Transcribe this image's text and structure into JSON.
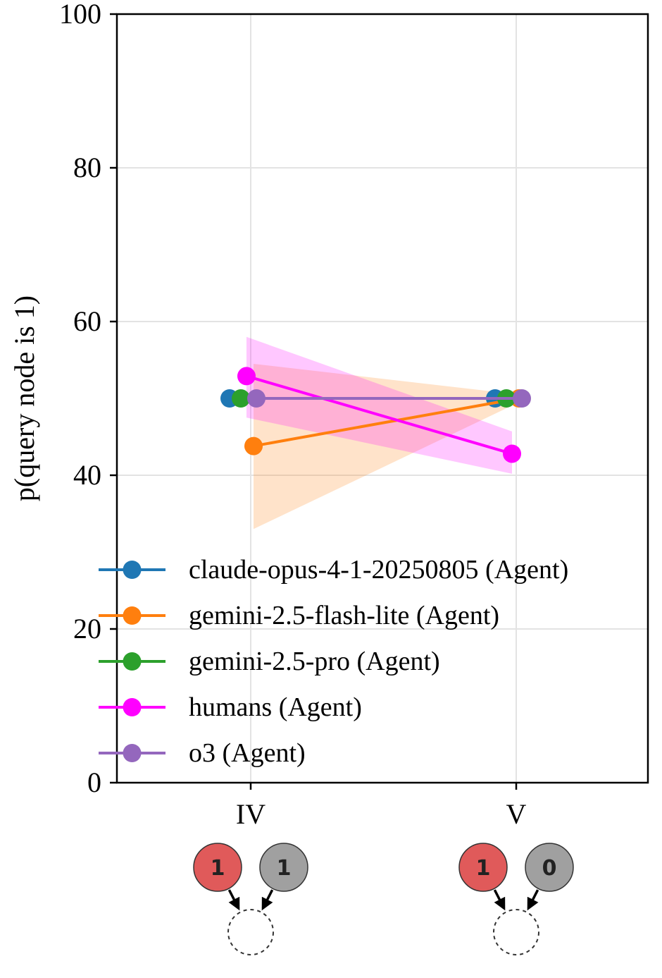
{
  "chart_data": {
    "type": "line",
    "title": "",
    "xlabel": "",
    "ylabel": "p(query node is 1)",
    "ylim": [
      0,
      100
    ],
    "yticks": [
      0,
      20,
      40,
      60,
      80,
      100
    ],
    "grid": true,
    "legend_placement": "lower-center",
    "categories": [
      "IV",
      "V"
    ],
    "series": [
      {
        "name": "claude-opus-4-1-20250805 (Agent)",
        "color": "#1f77b4",
        "values": [
          50,
          50
        ],
        "lower": [
          50,
          50
        ],
        "upper": [
          50,
          50
        ]
      },
      {
        "name": "gemini-2.5-flash-lite (Agent)",
        "color": "#ff7f0e",
        "values": [
          43.8,
          50
        ],
        "lower": [
          33,
          49.5
        ],
        "upper": [
          54.5,
          50.5
        ]
      },
      {
        "name": "gemini-2.5-pro (Agent)",
        "color": "#2ca02c",
        "values": [
          50,
          50
        ],
        "lower": [
          50,
          50
        ],
        "upper": [
          50,
          50
        ]
      },
      {
        "name": "humans (Agent)",
        "color": "#ff00ff",
        "values": [
          52.9,
          42.8
        ],
        "lower": [
          47.5,
          40.2
        ],
        "upper": [
          58,
          45.7
        ]
      },
      {
        "name": "o3 (Agent)",
        "color": "#9467bd",
        "values": [
          50,
          50
        ],
        "lower": [
          50,
          50
        ],
        "upper": [
          50,
          50
        ]
      }
    ],
    "graph_icons": [
      {
        "category": "IV",
        "nodes": [
          {
            "label": "1",
            "color": "#e05a5a"
          },
          {
            "label": "1",
            "color": "#a0a0a0"
          }
        ]
      },
      {
        "category": "V",
        "nodes": [
          {
            "label": "1",
            "color": "#e05a5a"
          },
          {
            "label": "0",
            "color": "#a0a0a0"
          }
        ]
      }
    ]
  }
}
